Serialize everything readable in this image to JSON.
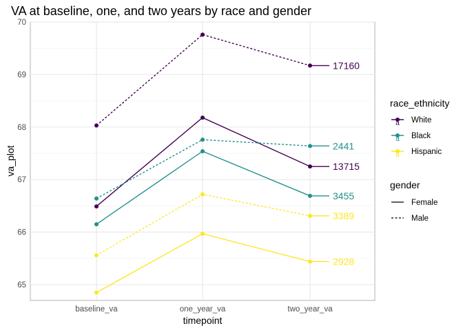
{
  "chart_data": {
    "type": "line",
    "title": "VA at baseline, one, and two years by race and gender",
    "xlabel": "timepoint",
    "ylabel": "va_plot",
    "categories": [
      "baseline_va",
      "one_year_va",
      "two_year_va"
    ],
    "ylim": [
      64.7,
      70
    ],
    "yticks": [
      65,
      66,
      67,
      68,
      69,
      70
    ],
    "grid": true,
    "legend_placement": "right",
    "colors": {
      "White": "#440154",
      "Black": "#21908C",
      "Hispanic": "#FDE725"
    },
    "series": [
      {
        "race_ethnicity": "White",
        "gender": "Male",
        "values": [
          68.03,
          69.76,
          69.17
        ],
        "end_label": "17160"
      },
      {
        "race_ethnicity": "White",
        "gender": "Female",
        "values": [
          66.49,
          68.18,
          67.25
        ],
        "end_label": "13715"
      },
      {
        "race_ethnicity": "Black",
        "gender": "Male",
        "values": [
          66.64,
          67.76,
          67.64
        ],
        "end_label": "2441"
      },
      {
        "race_ethnicity": "Black",
        "gender": "Female",
        "values": [
          66.15,
          67.54,
          66.69
        ],
        "end_label": "3455"
      },
      {
        "race_ethnicity": "Hispanic",
        "gender": "Male",
        "values": [
          65.56,
          66.72,
          66.31
        ],
        "end_label": "3389"
      },
      {
        "race_ethnicity": "Hispanic",
        "gender": "Female",
        "values": [
          64.85,
          65.97,
          65.44
        ],
        "end_label": "2928"
      }
    ],
    "legends": {
      "race_ethnicity": {
        "title": "race_ethnicity",
        "items": [
          "White",
          "Black",
          "Hispanic"
        ],
        "key_text": "a"
      },
      "gender": {
        "title": "gender",
        "items": [
          "Female",
          "Male"
        ],
        "linetypes": [
          "solid",
          "dashed"
        ]
      }
    }
  }
}
